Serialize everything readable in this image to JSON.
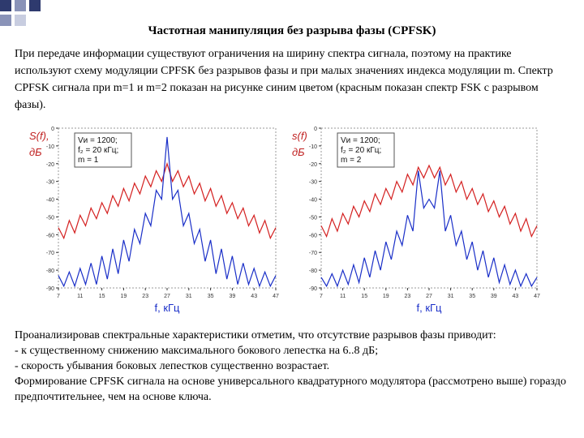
{
  "title": "Частотная манипуляция без разрыва фазы (CPFSK)",
  "intro": "При передаче информации существуют ограничения на ширину спектра сигнала, поэтому на практике используют схему модуляции CPFSK без разрывов фазы и при малых значениях индекса модуляции m. Спектр CPFSK сигнала при m=1 и m=2 показан на рисунке синим цветом (красным показан спектр FSK с разрывом фазы).",
  "conclusion": [
    "Проанализировав спектральные характеристики отметим, что отсутствие разрывов фазы приводит:",
    "- к существенному снижению максимального бокового лепестка на 6..8 дБ;",
    "- скорость убывания боковых лепестков существенно возрастает.",
    "Формирование CPFSK сигнала на основе универсального квадратурного модулятора (рассмотрено выше) гораздо предпочтительнее, чем на основе ключа."
  ],
  "chart_data": [
    {
      "type": "line",
      "ylabel": [
        "S(f),",
        "дБ"
      ],
      "xlabel": "f, кГц",
      "annotation": [
        "Vи = 1200;",
        "f₂ = 20 кГц;",
        "m = 1"
      ],
      "x": [
        7,
        8,
        9,
        10,
        11,
        12,
        13,
        14,
        15,
        16,
        17,
        18,
        19,
        20,
        21,
        22,
        23,
        24,
        25,
        26,
        27,
        28,
        29,
        30,
        31,
        32,
        33,
        34,
        35,
        36,
        37,
        38,
        39,
        40,
        41,
        42,
        43,
        44,
        45,
        46,
        47
      ],
      "series": [
        {
          "color": "#d42020",
          "values": [
            -56,
            -62,
            -52,
            -59,
            -49,
            -55,
            -45,
            -51,
            -42,
            -48,
            -38,
            -44,
            -34,
            -41,
            -31,
            -37,
            -27,
            -33,
            -24,
            -30,
            -20,
            -30,
            -24,
            -33,
            -27,
            -37,
            -31,
            -41,
            -34,
            -44,
            -38,
            -48,
            -42,
            -51,
            -45,
            -55,
            -49,
            -59,
            -52,
            -62,
            -56
          ]
        },
        {
          "color": "#1a2fc8",
          "values": [
            -83,
            -89,
            -81,
            -89,
            -79,
            -88,
            -76,
            -88,
            -72,
            -85,
            -68,
            -82,
            -63,
            -75,
            -57,
            -65,
            -48,
            -55,
            -35,
            -40,
            -5,
            -40,
            -35,
            -55,
            -48,
            -65,
            -57,
            -75,
            -63,
            -82,
            -68,
            -85,
            -72,
            -88,
            -76,
            -88,
            -79,
            -89,
            -81,
            -89,
            -83
          ]
        }
      ],
      "xlim": [
        7,
        47
      ],
      "xticks": [
        7,
        11,
        15,
        19,
        23,
        27,
        31,
        35,
        39,
        43,
        47
      ],
      "ylim": [
        -90,
        0
      ],
      "yticks": [
        0,
        -10,
        -20,
        -30,
        -40,
        -50,
        -60,
        -70,
        -80,
        -90
      ]
    },
    {
      "type": "line",
      "ylabel": [
        "s(f)",
        "дБ"
      ],
      "xlabel": "f, кГц",
      "annotation": [
        "Vи = 1200;",
        "f₂ = 20 кГц;",
        "m = 2"
      ],
      "x": [
        7,
        8,
        9,
        10,
        11,
        12,
        13,
        14,
        15,
        16,
        17,
        18,
        19,
        20,
        21,
        22,
        23,
        24,
        25,
        26,
        27,
        28,
        29,
        30,
        31,
        32,
        33,
        34,
        35,
        36,
        37,
        38,
        39,
        40,
        41,
        42,
        43,
        44,
        45,
        46,
        47
      ],
      "series": [
        {
          "color": "#d42020",
          "values": [
            -55,
            -61,
            -51,
            -58,
            -48,
            -54,
            -44,
            -50,
            -41,
            -47,
            -37,
            -43,
            -34,
            -40,
            -30,
            -36,
            -26,
            -32,
            -22,
            -28,
            -21,
            -28,
            -22,
            -32,
            -26,
            -36,
            -30,
            -40,
            -34,
            -43,
            -37,
            -47,
            -41,
            -50,
            -44,
            -54,
            -48,
            -58,
            -51,
            -61,
            -55
          ]
        },
        {
          "color": "#1a2fc8",
          "values": [
            -84,
            -89,
            -82,
            -89,
            -80,
            -88,
            -77,
            -87,
            -73,
            -84,
            -69,
            -80,
            -64,
            -74,
            -58,
            -66,
            -49,
            -58,
            -24,
            -45,
            -40,
            -45,
            -24,
            -58,
            -49,
            -66,
            -58,
            -74,
            -64,
            -80,
            -69,
            -84,
            -73,
            -87,
            -77,
            -88,
            -80,
            -89,
            -82,
            -89,
            -84
          ]
        }
      ],
      "xlim": [
        7,
        47
      ],
      "xticks": [
        7,
        11,
        15,
        19,
        23,
        27,
        31,
        35,
        39,
        43,
        47
      ],
      "ylim": [
        -90,
        0
      ],
      "yticks": [
        0,
        -10,
        -20,
        -30,
        -40,
        -50,
        -60,
        -70,
        -80,
        -90
      ]
    }
  ]
}
